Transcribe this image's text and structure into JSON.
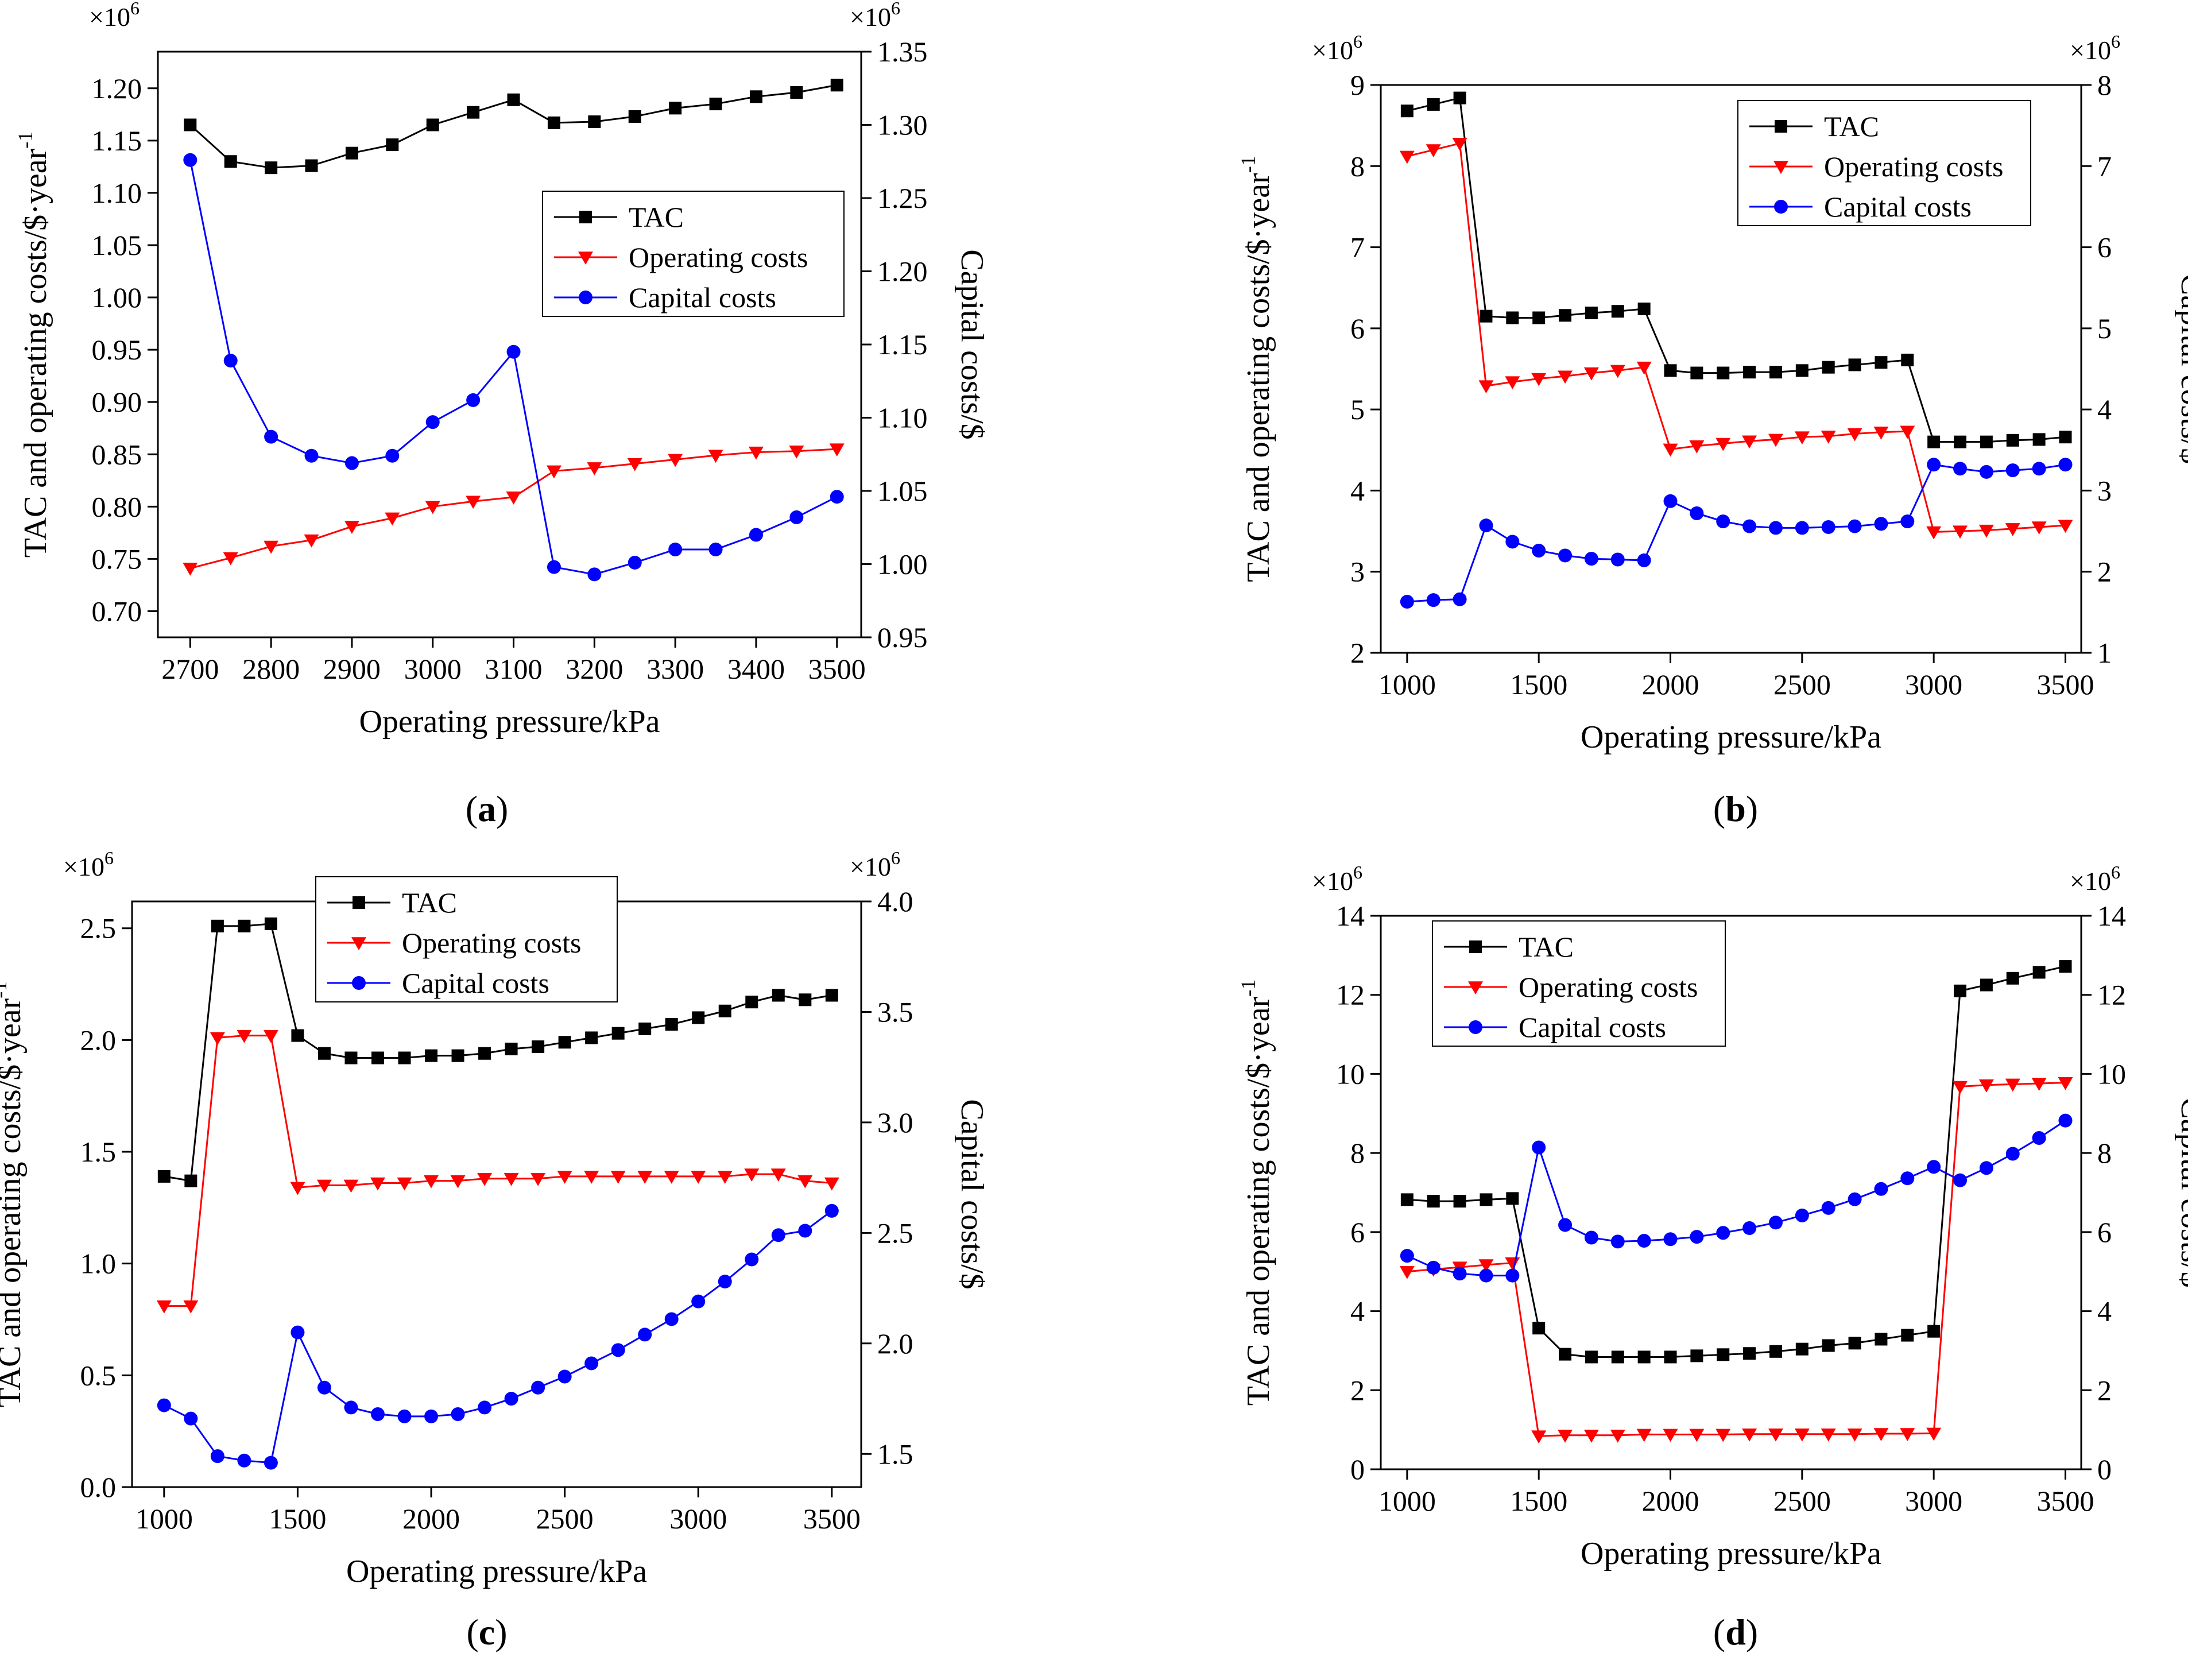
{
  "chart_data": [
    {
      "id": "a",
      "type": "line",
      "caption_letter": "a",
      "xlabel": "Operating pressure/kPa",
      "ylabel_left": "TAC and operating costs/$·year",
      "ylabel_left_sup": "-1",
      "ylabel_right": "Capital costs/$",
      "exponent_left": "×10",
      "exponent_right": "×10",
      "exponent_power": "6",
      "xlim": [
        2660,
        3530
      ],
      "ylim_left": [
        0.675,
        1.235
      ],
      "ylim_right": [
        0.95,
        1.35
      ],
      "xticks": [
        2700,
        2800,
        2900,
        3000,
        3100,
        3200,
        3300,
        3400,
        3500
      ],
      "xtick_labels": [
        "2700",
        "2800",
        "2900",
        "3000",
        "3100",
        "3200",
        "3300",
        "3400",
        "3500"
      ],
      "yticks_left": [
        0.7,
        0.75,
        0.8,
        0.85,
        0.9,
        0.95,
        1.0,
        1.05,
        1.1,
        1.15,
        1.2
      ],
      "ytick_labels_left": [
        "0.70",
        "0.75",
        "0.80",
        "0.85",
        "0.90",
        "0.95",
        "1.00",
        "1.05",
        "1.10",
        "1.15",
        "1.20"
      ],
      "yticks_right": [
        0.95,
        1.0,
        1.05,
        1.1,
        1.15,
        1.2,
        1.25,
        1.3,
        1.35
      ],
      "ytick_labels_right": [
        "0.95",
        "1.00",
        "1.05",
        "1.10",
        "1.15",
        "1.20",
        "1.25",
        "1.30",
        "1.35"
      ],
      "legend_position": "center-right",
      "x": [
        2700,
        2750,
        2800,
        2850,
        2900,
        2950,
        3000,
        3050,
        3100,
        3150,
        3200,
        3250,
        3300,
        3350,
        3400,
        3450,
        3500
      ],
      "series": [
        {
          "name": "TAC",
          "axis": "left",
          "color": "#000000",
          "marker": "square",
          "values": [
            1.165,
            1.13,
            1.124,
            1.126,
            1.138,
            1.146,
            1.165,
            1.177,
            1.189,
            1.167,
            1.168,
            1.173,
            1.181,
            1.185,
            1.192,
            1.196,
            1.203
          ]
        },
        {
          "name": "Operating costs",
          "axis": "left",
          "color": "#ff0000",
          "marker": "triangle-down",
          "values": [
            0.741,
            0.751,
            0.762,
            0.768,
            0.781,
            0.789,
            0.8,
            0.805,
            0.809,
            0.834,
            0.837,
            0.841,
            0.845,
            0.849,
            0.852,
            0.853,
            0.855
          ]
        },
        {
          "name": "Capital costs",
          "axis": "right",
          "color": "#0000ff",
          "marker": "circle",
          "values": [
            1.276,
            1.139,
            1.087,
            1.074,
            1.069,
            1.074,
            1.097,
            1.112,
            1.145,
            0.998,
            0.993,
            1.001,
            1.01,
            1.01,
            1.02,
            1.032,
            1.046
          ]
        }
      ]
    },
    {
      "id": "b",
      "type": "line",
      "caption_letter": "b",
      "xlabel": "Operating pressure/kPa",
      "ylabel_left": "TAC and operating costs/$·year",
      "ylabel_left_sup": "-1",
      "ylabel_right": "Capital costs/$",
      "exponent_left": "×10",
      "exponent_right": "×10",
      "exponent_power": "6",
      "xlim": [
        900,
        3560
      ],
      "ylim_left": [
        2,
        9
      ],
      "ylim_right": [
        1,
        8
      ],
      "xticks": [
        1000,
        1500,
        2000,
        2500,
        3000,
        3500
      ],
      "xtick_labels": [
        "1000",
        "1500",
        "2000",
        "2500",
        "3000",
        "3500"
      ],
      "yticks_left": [
        2,
        3,
        4,
        5,
        6,
        7,
        8,
        9
      ],
      "ytick_labels_left": [
        "2",
        "3",
        "4",
        "5",
        "6",
        "7",
        "8",
        "9"
      ],
      "yticks_right": [
        1,
        2,
        3,
        4,
        5,
        6,
        7,
        8
      ],
      "ytick_labels_right": [
        "1",
        "2",
        "3",
        "4",
        "5",
        "6",
        "7",
        "8"
      ],
      "legend_position": "top-right",
      "x": [
        1000,
        1100,
        1200,
        1300,
        1400,
        1500,
        1600,
        1700,
        1800,
        1900,
        2000,
        2100,
        2200,
        2300,
        2400,
        2500,
        2600,
        2700,
        2800,
        2900,
        3000,
        3100,
        3200,
        3300,
        3400,
        3500
      ],
      "series": [
        {
          "name": "TAC",
          "axis": "left",
          "color": "#000000",
          "marker": "square",
          "values": [
            8.68,
            8.76,
            8.84,
            6.15,
            6.13,
            6.13,
            6.16,
            6.19,
            6.21,
            6.24,
            5.48,
            5.45,
            5.45,
            5.46,
            5.46,
            5.48,
            5.52,
            5.55,
            5.58,
            5.61,
            4.6,
            4.6,
            4.6,
            4.62,
            4.63,
            4.66
          ]
        },
        {
          "name": "Operating costs",
          "axis": "left",
          "color": "#ff0000",
          "marker": "triangle-down",
          "values": [
            8.12,
            8.2,
            8.28,
            5.29,
            5.34,
            5.38,
            5.41,
            5.45,
            5.48,
            5.52,
            4.51,
            4.55,
            4.58,
            4.61,
            4.63,
            4.66,
            4.67,
            4.7,
            4.72,
            4.73,
            3.49,
            3.5,
            3.51,
            3.53,
            3.55,
            3.57
          ]
        },
        {
          "name": "Capital costs",
          "axis": "right",
          "color": "#0000ff",
          "marker": "circle",
          "values": [
            1.63,
            1.65,
            1.66,
            2.57,
            2.37,
            2.26,
            2.2,
            2.16,
            2.15,
            2.14,
            2.87,
            2.72,
            2.62,
            2.56,
            2.54,
            2.54,
            2.55,
            2.56,
            2.59,
            2.62,
            3.32,
            3.27,
            3.23,
            3.25,
            3.27,
            3.32
          ]
        }
      ]
    },
    {
      "id": "c",
      "type": "line",
      "caption_letter": "c",
      "xlabel": "Operating pressure/kPa",
      "ylabel_left": "TAC and operating costs/$·year",
      "ylabel_left_sup": "-1",
      "ylabel_right": "Capital costs/$",
      "exponent_left": "×10",
      "exponent_right": "×10",
      "exponent_power": "6",
      "xlim": [
        880,
        3610
      ],
      "ylim_left": [
        0,
        2.62
      ],
      "ylim_right": [
        1.35,
        4.0
      ],
      "xticks": [
        1000,
        1500,
        2000,
        2500,
        3000,
        3500
      ],
      "xtick_labels": [
        "1000",
        "1500",
        "2000",
        "2500",
        "3000",
        "3500"
      ],
      "yticks_left": [
        0.0,
        0.5,
        1.0,
        1.5,
        2.0,
        2.5
      ],
      "ytick_labels_left": [
        "0.0",
        "0.5",
        "1.0",
        "1.5",
        "2.0",
        "2.5"
      ],
      "yticks_right": [
        1.5,
        2.0,
        2.5,
        3.0,
        3.5,
        4.0
      ],
      "ytick_labels_right": [
        "1.5",
        "2.0",
        "2.5",
        "3.0",
        "3.5",
        "4.0"
      ],
      "legend_position": "top-right",
      "x": [
        1000,
        1100,
        1200,
        1300,
        1400,
        1500,
        1600,
        1700,
        1800,
        1900,
        2000,
        2100,
        2200,
        2300,
        2400,
        2500,
        2600,
        2700,
        2800,
        2900,
        3000,
        3100,
        3200,
        3300,
        3400,
        3500
      ],
      "series": [
        {
          "name": "TAC",
          "axis": "left",
          "color": "#000000",
          "marker": "square",
          "values": [
            1.39,
            1.37,
            2.51,
            2.51,
            2.52,
            2.02,
            1.94,
            1.92,
            1.92,
            1.92,
            1.93,
            1.93,
            1.94,
            1.96,
            1.97,
            1.99,
            2.01,
            2.03,
            2.05,
            2.07,
            2.1,
            2.13,
            2.17,
            2.2,
            2.18,
            2.2
          ]
        },
        {
          "name": "Operating costs",
          "axis": "left",
          "color": "#ff0000",
          "marker": "triangle-down",
          "values": [
            0.81,
            0.81,
            2.01,
            2.02,
            2.02,
            1.34,
            1.35,
            1.35,
            1.36,
            1.36,
            1.37,
            1.37,
            1.38,
            1.38,
            1.38,
            1.39,
            1.39,
            1.39,
            1.39,
            1.39,
            1.39,
            1.39,
            1.4,
            1.4,
            1.37,
            1.36
          ]
        },
        {
          "name": "Capital costs",
          "axis": "right",
          "color": "#0000ff",
          "marker": "circle",
          "values": [
            1.72,
            1.66,
            1.49,
            1.47,
            1.46,
            2.05,
            1.8,
            1.71,
            1.68,
            1.67,
            1.67,
            1.68,
            1.71,
            1.75,
            1.8,
            1.85,
            1.91,
            1.97,
            2.04,
            2.11,
            2.19,
            2.28,
            2.38,
            2.49,
            2.51,
            2.6
          ]
        }
      ]
    },
    {
      "id": "d",
      "type": "line",
      "caption_letter": "d",
      "xlabel": "Operating pressure/kPa",
      "ylabel_left": "TAC and operating costs/$·year",
      "ylabel_left_sup": "-1",
      "ylabel_right": "Capital costs/$",
      "exponent_left": "×10",
      "exponent_right": "×10",
      "exponent_power": "6",
      "xlim": [
        900,
        3560
      ],
      "ylim_left": [
        0,
        14
      ],
      "ylim_right": [
        0,
        14
      ],
      "xticks": [
        1000,
        1500,
        2000,
        2500,
        3000,
        3500
      ],
      "xtick_labels": [
        "1000",
        "1500",
        "2000",
        "2500",
        "3000",
        "3500"
      ],
      "yticks_left": [
        0,
        2,
        4,
        6,
        8,
        10,
        12,
        14
      ],
      "ytick_labels_left": [
        "0",
        "2",
        "4",
        "6",
        "8",
        "10",
        "12",
        "14"
      ],
      "yticks_right": [
        0,
        2,
        4,
        6,
        8,
        10,
        12,
        14
      ],
      "ytick_labels_right": [
        "0",
        "2",
        "4",
        "6",
        "8",
        "10",
        "12",
        "14"
      ],
      "legend_position": "top-left",
      "x": [
        1000,
        1100,
        1200,
        1300,
        1400,
        1500,
        1600,
        1700,
        1800,
        1900,
        2000,
        2100,
        2200,
        2300,
        2400,
        2500,
        2600,
        2700,
        2800,
        2900,
        3000,
        3100,
        3200,
        3300,
        3400,
        3500
      ],
      "series": [
        {
          "name": "TAC",
          "axis": "left",
          "color": "#000000",
          "marker": "square",
          "values": [
            6.82,
            6.78,
            6.78,
            6.82,
            6.85,
            3.57,
            2.91,
            2.84,
            2.84,
            2.84,
            2.84,
            2.87,
            2.9,
            2.93,
            2.98,
            3.04,
            3.13,
            3.19,
            3.29,
            3.39,
            3.49,
            12.1,
            12.25,
            12.42,
            12.57,
            12.72
          ]
        },
        {
          "name": "Operating costs",
          "axis": "left",
          "color": "#ff0000",
          "marker": "triangle-down",
          "values": [
            5.0,
            5.06,
            5.11,
            5.17,
            5.22,
            0.84,
            0.86,
            0.86,
            0.86,
            0.88,
            0.88,
            0.88,
            0.88,
            0.89,
            0.89,
            0.89,
            0.89,
            0.89,
            0.9,
            0.9,
            0.91,
            9.68,
            9.72,
            9.74,
            9.76,
            9.78
          ]
        },
        {
          "name": "Capital costs",
          "axis": "right",
          "color": "#0000ff",
          "marker": "circle",
          "values": [
            5.4,
            5.1,
            4.95,
            4.9,
            4.9,
            8.14,
            6.18,
            5.86,
            5.76,
            5.78,
            5.82,
            5.88,
            5.98,
            6.1,
            6.24,
            6.42,
            6.61,
            6.83,
            7.09,
            7.36,
            7.65,
            7.31,
            7.62,
            7.98,
            8.38,
            8.82
          ]
        }
      ]
    }
  ]
}
